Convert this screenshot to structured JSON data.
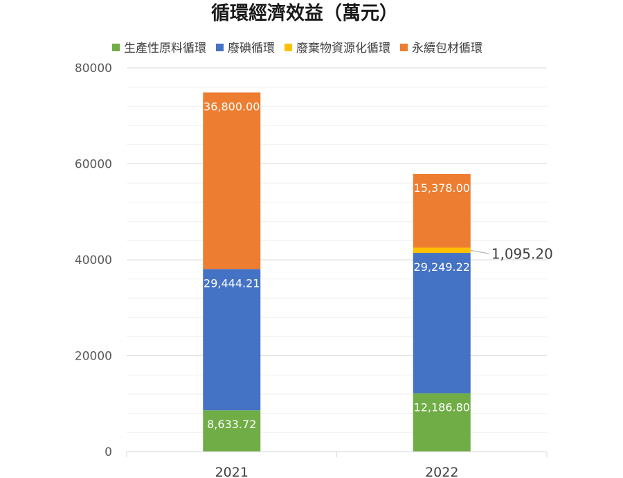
{
  "chart_data": {
    "type": "bar",
    "stacked": true,
    "title": "循環經濟效益（萬元）",
    "categories": [
      "2021",
      "2022"
    ],
    "series": [
      {
        "name": "生產性原料循環",
        "color": "#70ad47",
        "values": [
          8633.72,
          12186.8
        ],
        "labels": [
          "8,633.72",
          "12,186.80"
        ]
      },
      {
        "name": "廢碘循環",
        "color": "#4472c4",
        "values": [
          29444.21,
          29249.22
        ],
        "labels": [
          "29,444.21",
          "29,249.22"
        ]
      },
      {
        "name": "廢棄物資源化循環",
        "color": "#ffc000",
        "values": [
          0,
          1095.2
        ],
        "labels": [
          "",
          "1,095.20"
        ]
      },
      {
        "name": "永續包材循環",
        "color": "#ed7d31",
        "values": [
          36800.0,
          15378.0
        ],
        "labels": [
          "36,800.00",
          "15,378.00"
        ]
      }
    ],
    "ylim": [
      0,
      80000
    ],
    "yticks": [
      "0",
      "20000",
      "40000",
      "60000",
      "80000"
    ],
    "grid": true,
    "legend": "top"
  }
}
